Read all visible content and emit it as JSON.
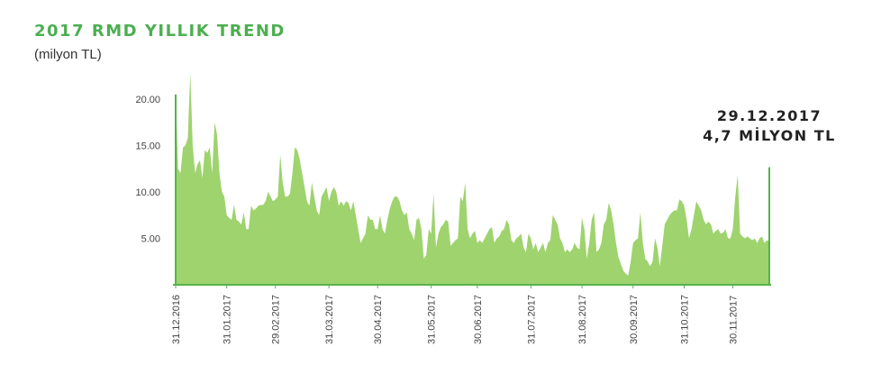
{
  "header": {
    "title": "2017 RMD YILLIK TREND",
    "subtitle": "(milyon TL)"
  },
  "callout": {
    "date": "29.12.2017",
    "value": "4,7 MİLYON TL"
  },
  "colors": {
    "title": "#4caf50",
    "area_fill": "#9ed36e",
    "area_edge": "#55b34a",
    "axis": "#55b34a",
    "text": "#333333"
  },
  "chart_data": {
    "type": "area",
    "title": "2017 RMD YILLIK TREND",
    "ylabel": "(milyon TL)",
    "xlabel": "",
    "ylim": [
      0,
      22.8
    ],
    "grid": false,
    "legend": "none",
    "yticks": [
      5,
      10,
      15,
      20
    ],
    "ytick_labels": [
      "5.00",
      "10.00",
      "15.00",
      "20.00"
    ],
    "xtick_labels": [
      "31.12.2016",
      "31.01.2017",
      "29.02.2017",
      "31.03.2017",
      "30.04.2017",
      "31.05.2017",
      "30.06.2017",
      "31.07.2017",
      "31.08.2017",
      "30.09.2017",
      "31.10.2017",
      "30.11.2017"
    ],
    "xtick_index": [
      0,
      21,
      41,
      63,
      83,
      105,
      124,
      146,
      167,
      188,
      209,
      229
    ],
    "series": [
      {
        "values": [
          20.5,
          12.5,
          12.0,
          14.8,
          15.0,
          15.8,
          22.8,
          15.0,
          12.0,
          13.0,
          13.4,
          11.5,
          14.5,
          14.2,
          14.8,
          12.0,
          17.5,
          16.2,
          12.0,
          10.0,
          9.5,
          7.5,
          7.2,
          7.0,
          8.6,
          7.0,
          6.8,
          6.5,
          7.8,
          6.0,
          6.0,
          8.5,
          8.0,
          8.2,
          8.5,
          8.6,
          8.6,
          9.0,
          10.0,
          9.5,
          9.0,
          9.2,
          9.5,
          14.0,
          11.0,
          9.5,
          9.5,
          9.8,
          12.0,
          14.8,
          14.5,
          13.5,
          12.0,
          10.5,
          9.0,
          8.5,
          11.0,
          9.5,
          8.0,
          7.5,
          9.5,
          10.0,
          10.5,
          9.0,
          10.0,
          10.5,
          10.0,
          8.5,
          9.0,
          8.5,
          9.0,
          8.8,
          8.0,
          9.0,
          7.5,
          6.0,
          4.5,
          5.0,
          5.5,
          7.5,
          7.0,
          7.0,
          6.0,
          6.0,
          7.5,
          6.0,
          5.5,
          7.0,
          8.2,
          9.0,
          9.5,
          9.5,
          9.0,
          8.0,
          7.5,
          7.8,
          6.0,
          5.5,
          4.8,
          7.0,
          7.2,
          6.0,
          2.8,
          3.2,
          6.0,
          5.5,
          9.8,
          4.0,
          5.5,
          6.2,
          6.5,
          7.0,
          6.8,
          4.2,
          4.5,
          4.8,
          5.0,
          9.5,
          9.0,
          11.0,
          6.0,
          5.0,
          5.5,
          5.8,
          4.5,
          4.8,
          4.5,
          5.0,
          5.5,
          6.0,
          6.2,
          4.5,
          5.0,
          5.2,
          5.8,
          6.0,
          7.0,
          6.5,
          4.8,
          4.5,
          5.0,
          5.2,
          5.5,
          4.0,
          3.5,
          5.5,
          5.0,
          3.8,
          4.5,
          3.5,
          4.0,
          4.5,
          3.5,
          4.5,
          4.8,
          7.5,
          7.0,
          6.5,
          5.0,
          4.5,
          3.5,
          3.8,
          3.5,
          3.8,
          4.5,
          4.0,
          3.8,
          7.2,
          6.0,
          2.8,
          4.5,
          7.0,
          7.8,
          3.5,
          3.8,
          4.5,
          6.5,
          7.0,
          8.8,
          8.0,
          6.5,
          4.5,
          3.0,
          2.2,
          1.5,
          1.2,
          1.0,
          2.5,
          4.5,
          4.8,
          5.0,
          7.8,
          4.5,
          2.8,
          2.5,
          2.0,
          2.5,
          5.0,
          4.0,
          2.0,
          4.2,
          6.5,
          7.0,
          7.5,
          7.8,
          8.0,
          8.0,
          9.2,
          9.0,
          8.5,
          7.0,
          5.0,
          6.0,
          7.5,
          9.0,
          8.5,
          8.0,
          7.0,
          6.5,
          6.8,
          6.5,
          5.5,
          5.8,
          6.0,
          5.5,
          5.6,
          6.0,
          5.0,
          5.0,
          6.0,
          9.5,
          11.8,
          5.5,
          5.2,
          5.0,
          5.2,
          5.0,
          4.8,
          5.0,
          4.5,
          5.0,
          5.2,
          4.5,
          4.8,
          4.7
        ]
      }
    ]
  }
}
